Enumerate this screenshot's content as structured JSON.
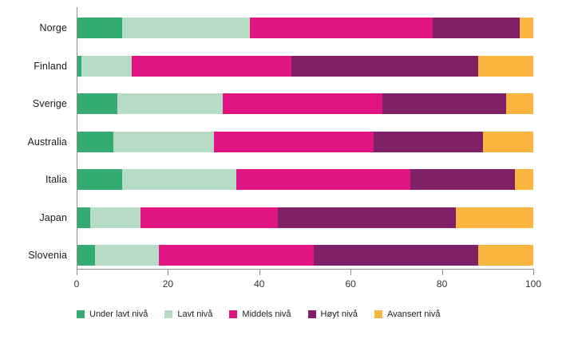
{
  "chart_data": {
    "type": "bar",
    "orientation": "horizontal",
    "stacked": true,
    "title": "",
    "xlabel": "",
    "ylabel": "",
    "xlim": [
      0,
      100
    ],
    "x_ticks": [
      0,
      20,
      40,
      60,
      80,
      100
    ],
    "grid": false,
    "legend_position": "bottom",
    "categories": [
      "Norge",
      "Finland",
      "Sverige",
      "Australia",
      "Italia",
      "Japan",
      "Slovenia"
    ],
    "series": [
      {
        "name": "Under lavt nivå",
        "color": "#34ab70",
        "values": [
          10,
          1,
          9,
          8,
          10,
          3,
          4
        ]
      },
      {
        "name": "Lavt nivå",
        "color": "#b6dcc5",
        "values": [
          28,
          11,
          23,
          22,
          25,
          11,
          14
        ]
      },
      {
        "name": "Middels nivå",
        "color": "#e01583",
        "values": [
          40,
          35,
          35,
          35,
          38,
          30,
          34
        ]
      },
      {
        "name": "Høyt nivå",
        "color": "#7f2167",
        "values": [
          19,
          41,
          27,
          24,
          23,
          39,
          36
        ]
      },
      {
        "name": "Avansert nivå",
        "color": "#f9b540",
        "values": [
          3,
          12,
          6,
          11,
          4,
          17,
          12
        ]
      }
    ],
    "axis_color": "#8f8f8f",
    "tick_label_color": "#333333"
  }
}
